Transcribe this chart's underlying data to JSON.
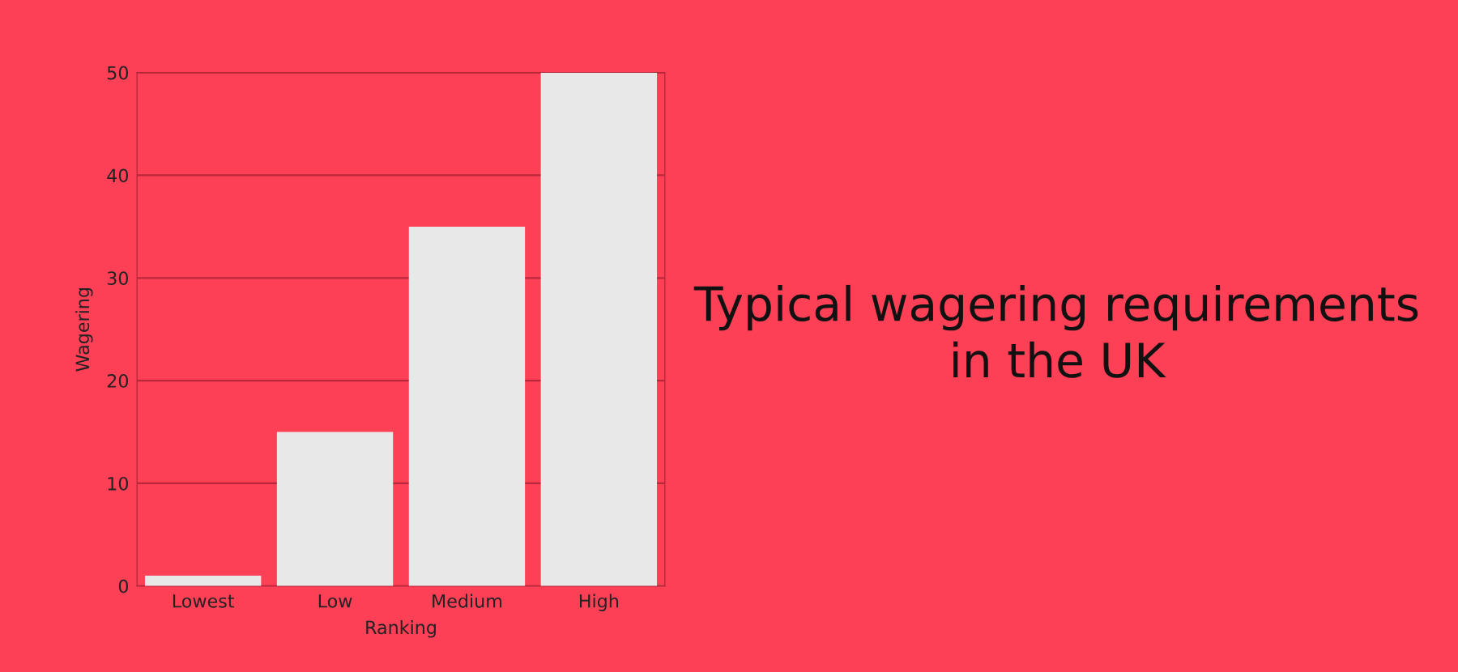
{
  "chart_data": {
    "type": "bar",
    "title": "Typical wagering requirements\nin the UK",
    "xlabel": "Ranking",
    "ylabel": "Wagering",
    "categories": [
      "Lowest",
      "Low",
      "Medium",
      "High"
    ],
    "values": [
      1,
      15,
      35,
      50
    ],
    "color": "#e8e8e8",
    "ylim": [
      0,
      50
    ],
    "yticks": [
      0,
      10,
      20,
      30,
      40,
      50
    ],
    "grid": "y"
  }
}
